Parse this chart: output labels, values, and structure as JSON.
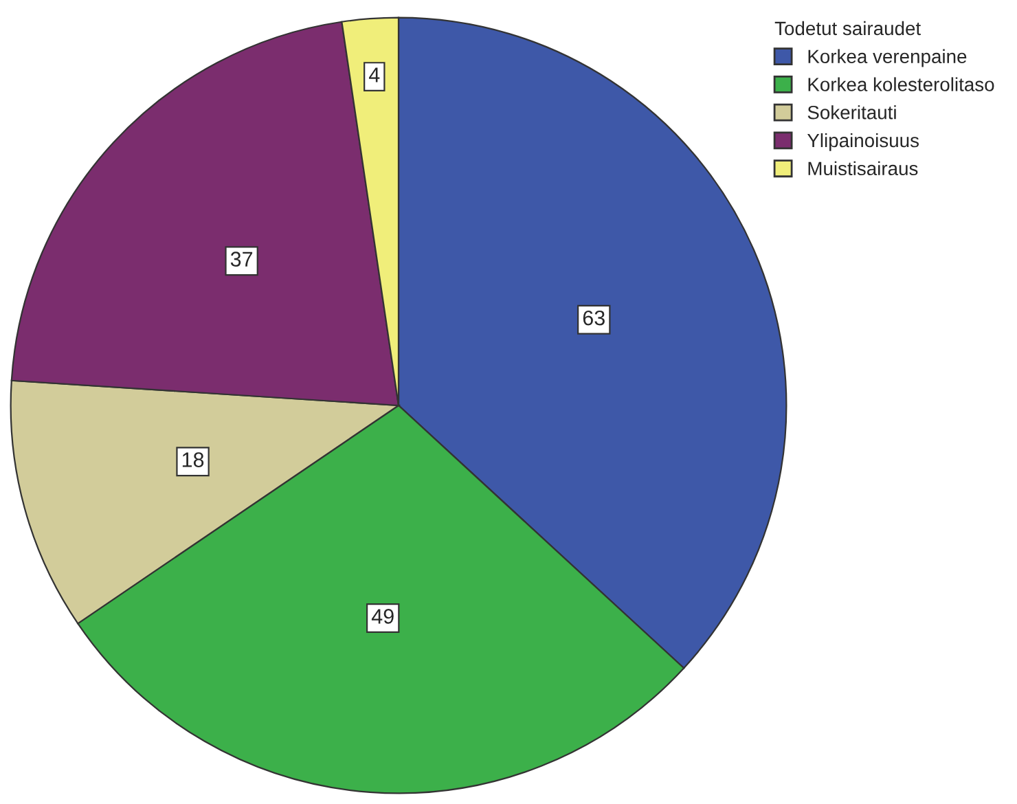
{
  "chart_data": {
    "type": "pie",
    "legend_title": "Todetut sairaudet",
    "categories": [
      "Korkea verenpaine",
      "Korkea kolesterolitaso",
      "Sokeritauti",
      "Ylipainoisuus",
      "Muistisairaus"
    ],
    "values": [
      63,
      49,
      18,
      37,
      4
    ],
    "colors": [
      "#3e58a8",
      "#3cb04a",
      "#d2cc9a",
      "#7b2d6e",
      "#f0ee7a"
    ],
    "data_labels": true,
    "legend": "top right"
  }
}
